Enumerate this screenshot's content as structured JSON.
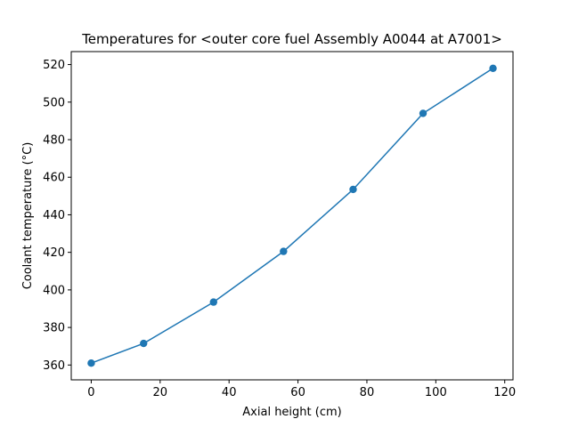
{
  "chart_data": {
    "type": "line",
    "title": "Temperatures for <outer core fuel Assembly A0044 at A7001>",
    "xlabel": "Axial height (cm)",
    "ylabel": "Coolant temperature (°C)",
    "xlim": [
      -5.8,
      122.4
    ],
    "ylim": [
      352.1,
      526.9
    ],
    "xticks": [
      0,
      20,
      40,
      60,
      80,
      100,
      120
    ],
    "yticks": [
      360,
      380,
      400,
      420,
      440,
      460,
      480,
      500,
      520
    ],
    "grid": false,
    "series": [
      {
        "color": "#1f77b4",
        "marker": "circle",
        "x": [
          0,
          15.2,
          35.5,
          55.8,
          76.0,
          96.3,
          116.6
        ],
        "y": [
          361.0,
          371.5,
          393.5,
          420.5,
          453.5,
          494.0,
          518.0
        ]
      }
    ]
  }
}
